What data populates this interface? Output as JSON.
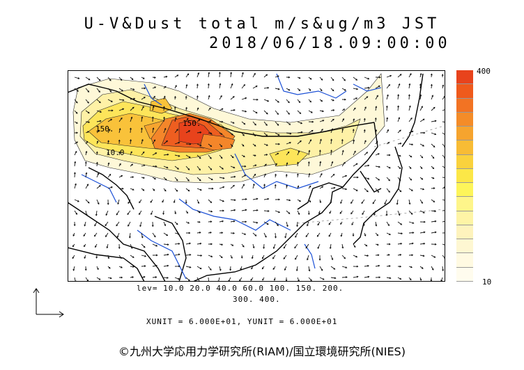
{
  "title": {
    "line1": "U-V&Dust total m/s&ug/m3 JST",
    "line2": "2018/06/18.09:00:00"
  },
  "legend": {
    "max_label": "400",
    "min_label": "10",
    "colors": [
      "#e8431c",
      "#ef5a1c",
      "#f27323",
      "#f48c28",
      "#f6a42e",
      "#f8bc35",
      "#fad23d",
      "#fce747",
      "#fdf55a",
      "#fef58a",
      "#fef4a6",
      "#fef3bd",
      "#fef7d2",
      "#fffae2",
      "#fffcee"
    ]
  },
  "levels": {
    "line1": "lev= 10.0 20.0 40.0 60.0 100. 150. 200.",
    "line2": "300. 400."
  },
  "units": "XUNIT = 6.000E+01, YUNIT = 6.000E+01",
  "map_labels": [
    "150.",
    "10.0",
    "150."
  ],
  "copyright": "©九州大学応用力学研究所(RIAM)/国立環境研究所(NIES)",
  "colors": {
    "coast": "#000000",
    "river": "#1a4fd6",
    "arrow": "#111111"
  }
}
